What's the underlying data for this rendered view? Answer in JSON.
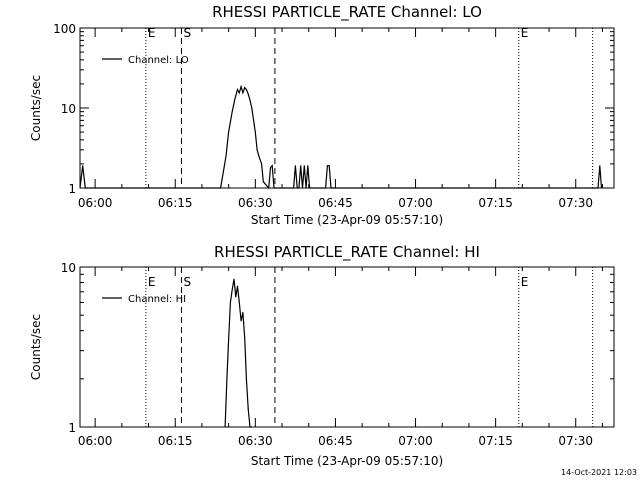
{
  "footer": {
    "timestamp": "14-Oct-2021 12:03"
  },
  "chart_data": [
    {
      "type": "line",
      "title": "RHESSI PARTICLE_RATE Channel: LO",
      "xlabel": "Start Time (23-Apr-09 05:57:10)",
      "ylabel": "Counts/sec",
      "yscale": "log",
      "xlim": [
        "05:57:10",
        "07:37:10"
      ],
      "ylim": [
        1,
        100
      ],
      "x_ticks": [
        "06:00",
        "06:15",
        "06:30",
        "06:45",
        "07:00",
        "07:15",
        "07:30"
      ],
      "y_ticks": [
        "1",
        "10",
        "100"
      ],
      "legend": {
        "position": "top-left",
        "entries": [
          "Channel: LO"
        ]
      },
      "markers": [
        {
          "label": "E",
          "style": "dotted",
          "time": "06:09:30"
        },
        {
          "label": "S",
          "style": "dashed",
          "time": "06:16:10"
        },
        {
          "label": "",
          "style": "dashed",
          "time": "06:33:40"
        },
        {
          "label": "E",
          "style": "dotted",
          "time": "07:19:20"
        },
        {
          "label": "",
          "style": "dotted",
          "time": "07:33:10"
        }
      ],
      "series": [
        {
          "x": [
            "05:57:10",
            "05:57:40",
            "05:58:10",
            "05:58:40",
            "05:59:10",
            "06:23:30",
            "06:24:30",
            "06:25:00",
            "06:25:40",
            "06:26:10",
            "06:26:40",
            "06:27:00",
            "06:27:20",
            "06:27:40",
            "06:28:00",
            "06:28:20",
            "06:28:40",
            "06:29:00",
            "06:29:20",
            "06:29:40",
            "06:30:00",
            "06:30:20",
            "06:30:40",
            "06:31:10",
            "06:31:30",
            "06:32:30",
            "06:32:50",
            "06:33:10",
            "06:33:30",
            "06:37:10",
            "06:37:30",
            "06:37:50",
            "06:38:10",
            "06:38:30",
            "06:38:50",
            "06:39:10",
            "06:39:30",
            "06:39:50",
            "06:40:10",
            "06:40:30",
            "06:40:50",
            "06:43:10",
            "06:43:30",
            "06:43:50",
            "06:44:10",
            "06:44:30",
            "07:34:10",
            "07:34:30",
            "07:34:50"
          ],
          "y": [
            1,
            1.9,
            1,
            1,
            1,
            1,
            2.5,
            5.0,
            9.0,
            13,
            17,
            15.5,
            18.5,
            15.5,
            18,
            17,
            15,
            12.5,
            10,
            7.0,
            5.0,
            3.0,
            2.5,
            2.0,
            1.2,
            1,
            1.8,
            1.9,
            1,
            1,
            1.9,
            1,
            1,
            1.9,
            1,
            1.9,
            1,
            1.9,
            1,
            1,
            1,
            1,
            1.9,
            1.9,
            1,
            1,
            1,
            1.9,
            1
          ]
        }
      ]
    },
    {
      "type": "line",
      "title": "RHESSI PARTICLE_RATE Channel: HI",
      "xlabel": "Start Time (23-Apr-09 05:57:10)",
      "ylabel": "Counts/sec",
      "yscale": "log",
      "xlim": [
        "05:57:10",
        "07:37:10"
      ],
      "ylim": [
        1,
        10
      ],
      "x_ticks": [
        "06:00",
        "06:15",
        "06:30",
        "06:45",
        "07:00",
        "07:15",
        "07:30"
      ],
      "y_ticks": [
        "1",
        "10"
      ],
      "legend": {
        "position": "top-left",
        "entries": [
          "Channel: HI"
        ]
      },
      "markers": [
        {
          "label": "E",
          "style": "dotted",
          "time": "06:09:30"
        },
        {
          "label": "S",
          "style": "dashed",
          "time": "06:16:10"
        },
        {
          "label": "",
          "style": "dashed",
          "time": "06:33:40"
        },
        {
          "label": "E",
          "style": "dotted",
          "time": "07:19:20"
        },
        {
          "label": "",
          "style": "dotted",
          "time": "07:33:10"
        }
      ],
      "series": [
        {
          "x": [
            "06:24:20",
            "06:24:40",
            "06:25:00",
            "06:25:20",
            "06:25:40",
            "06:26:00",
            "06:26:20",
            "06:26:40",
            "06:27:00",
            "06:27:20",
            "06:27:40",
            "06:28:00",
            "06:28:20",
            "06:28:40",
            "06:29:00",
            "06:29:20"
          ],
          "y": [
            1,
            2.0,
            3.5,
            6.0,
            7.2,
            8.4,
            6.5,
            7.6,
            6.0,
            4.6,
            5.2,
            3.6,
            2.0,
            1.3,
            1,
            1
          ]
        }
      ]
    }
  ]
}
